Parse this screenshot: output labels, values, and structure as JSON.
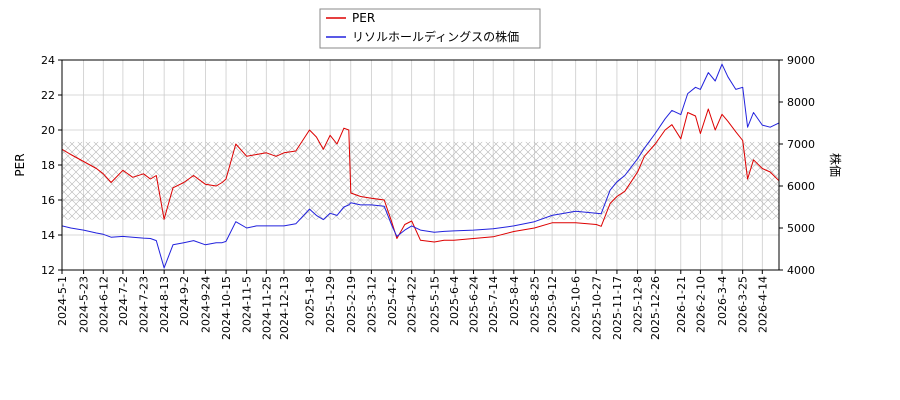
{
  "chart_data": {
    "type": "line",
    "title": "",
    "legend": {
      "placement": "top-center",
      "entries": [
        "PER",
        "リソルホールディングスの株価"
      ]
    },
    "y_left": {
      "label": "PER",
      "range": [
        12,
        24
      ],
      "ticks": [
        "12",
        "14",
        "16",
        "18",
        "20",
        "22",
        "24"
      ]
    },
    "y_right": {
      "label": "株価",
      "range": [
        4000,
        9000
      ],
      "ticks": [
        "4000",
        "5000",
        "6000",
        "7000",
        "8000",
        "9000"
      ]
    },
    "x_axis": {
      "start": "2024-5-1",
      "end": "2026-5-1",
      "ticks": [
        "2024-5-1",
        "2024-5-23",
        "2024-6-12",
        "2024-7-2",
        "2024-7-23",
        "2024-8-13",
        "2024-9-2",
        "2024-9-24",
        "2024-10-15",
        "2024-11-5",
        "2024-11-25",
        "2024-12-13",
        "2025-1-8",
        "2025-1-29",
        "2025-2-19",
        "2025-3-12",
        "2025-4-2",
        "2025-4-22",
        "2025-5-15",
        "2025-6-4",
        "2025-6-24",
        "2025-7-14",
        "2025-8-4",
        "2025-8-25",
        "2025-9-12",
        "2025-10-6",
        "2025-10-27",
        "2025-11-17",
        "2025-12-8",
        "2025-12-26",
        "2026-1-21",
        "2026-2-10",
        "2026-3-4",
        "2026-3-25",
        "2026-4-14"
      ]
    },
    "grid": true,
    "band": {
      "axis": "right",
      "range": [
        5200,
        7050
      ],
      "pattern": "crosshatch"
    },
    "series": [
      {
        "name": "PER",
        "axis": "left",
        "color": "#dd0000",
        "x": [
          "2024-5-1",
          "2024-5-10",
          "2024-5-23",
          "2024-6-5",
          "2024-6-12",
          "2024-6-20",
          "2024-7-2",
          "2024-7-12",
          "2024-7-23",
          "2024-7-30",
          "2024-8-5",
          "2024-8-13",
          "2024-8-22",
          "2024-9-2",
          "2024-9-12",
          "2024-9-24",
          "2024-10-5",
          "2024-10-11",
          "2024-10-15",
          "2024-10-25",
          "2024-11-5",
          "2024-11-15",
          "2024-11-25",
          "2024-12-5",
          "2024-12-13",
          "2024-12-25",
          "2025-1-8",
          "2025-1-15",
          "2025-1-22",
          "2025-1-29",
          "2025-2-5",
          "2025-2-12",
          "2025-2-17",
          "2025-2-19",
          "2025-3-1",
          "2025-3-12",
          "2025-3-25",
          "2025-4-2",
          "2025-4-7",
          "2025-4-15",
          "2025-4-22",
          "2025-5-1",
          "2025-5-15",
          "2025-5-25",
          "2025-6-4",
          "2025-6-24",
          "2025-7-14",
          "2025-8-4",
          "2025-8-25",
          "2025-9-12",
          "2025-10-6",
          "2025-10-27",
          "2025-11-1",
          "2025-11-10",
          "2025-11-17",
          "2025-11-25",
          "2025-12-8",
          "2025-12-15",
          "2025-12-26",
          "2026-1-5",
          "2026-1-12",
          "2026-1-21",
          "2026-1-28",
          "2026-2-5",
          "2026-2-10",
          "2026-2-18",
          "2026-2-25",
          "2026-3-4",
          "2026-3-10",
          "2026-3-18",
          "2026-3-25",
          "2026-3-30",
          "2026-4-5",
          "2026-4-14",
          "2026-4-22",
          "2026-5-1"
        ],
        "y": [
          18.9,
          18.6,
          18.2,
          17.8,
          17.5,
          17.0,
          17.7,
          17.3,
          17.5,
          17.2,
          17.4,
          14.9,
          16.7,
          17.0,
          17.4,
          16.9,
          16.8,
          17.0,
          17.2,
          19.2,
          18.5,
          18.6,
          18.7,
          18.5,
          18.7,
          18.8,
          20.0,
          19.6,
          18.9,
          19.7,
          19.2,
          20.1,
          20.0,
          16.4,
          16.2,
          16.1,
          16.0,
          14.7,
          13.8,
          14.6,
          14.8,
          13.7,
          13.6,
          13.7,
          13.7,
          13.8,
          13.9,
          14.2,
          14.4,
          14.7,
          14.7,
          14.6,
          14.5,
          15.8,
          16.2,
          16.5,
          17.6,
          18.5,
          19.2,
          20.0,
          20.3,
          19.5,
          21.0,
          20.8,
          19.8,
          21.2,
          20.0,
          20.9,
          20.5,
          19.9,
          19.4,
          17.2,
          18.3,
          17.8,
          17.6,
          17.1
        ]
      },
      {
        "name": "リソルホールディングスの株価",
        "axis": "right",
        "color": "#2222dd",
        "x": [
          "2024-5-1",
          "2024-5-10",
          "2024-5-23",
          "2024-6-5",
          "2024-6-12",
          "2024-6-20",
          "2024-7-2",
          "2024-7-12",
          "2024-7-23",
          "2024-7-30",
          "2024-8-5",
          "2024-8-13",
          "2024-8-22",
          "2024-9-2",
          "2024-9-12",
          "2024-9-24",
          "2024-10-5",
          "2024-10-11",
          "2024-10-15",
          "2024-10-25",
          "2024-11-5",
          "2024-11-15",
          "2024-11-25",
          "2024-12-5",
          "2024-12-13",
          "2024-12-25",
          "2025-1-8",
          "2025-1-15",
          "2025-1-22",
          "2025-1-29",
          "2025-2-5",
          "2025-2-12",
          "2025-2-17",
          "2025-2-19",
          "2025-3-1",
          "2025-3-12",
          "2025-3-25",
          "2025-4-2",
          "2025-4-7",
          "2025-4-15",
          "2025-4-22",
          "2025-5-1",
          "2025-5-15",
          "2025-5-25",
          "2025-6-4",
          "2025-6-24",
          "2025-7-14",
          "2025-8-4",
          "2025-8-25",
          "2025-9-12",
          "2025-10-6",
          "2025-10-27",
          "2025-11-1",
          "2025-11-10",
          "2025-11-17",
          "2025-11-25",
          "2025-12-8",
          "2025-12-15",
          "2025-12-26",
          "2026-1-5",
          "2026-1-12",
          "2026-1-21",
          "2026-1-28",
          "2026-2-5",
          "2026-2-10",
          "2026-2-18",
          "2026-2-25",
          "2026-3-4",
          "2026-3-10",
          "2026-3-18",
          "2026-3-25",
          "2026-3-30",
          "2026-4-5",
          "2026-4-14",
          "2026-4-22",
          "2026-5-1"
        ],
        "y": [
          5050,
          5000,
          4950,
          4880,
          4850,
          4780,
          4800,
          4780,
          4760,
          4750,
          4700,
          4050,
          4600,
          4650,
          4700,
          4600,
          4650,
          4650,
          4680,
          5150,
          5000,
          5050,
          5050,
          5050,
          5050,
          5100,
          5450,
          5300,
          5200,
          5350,
          5300,
          5500,
          5550,
          5600,
          5550,
          5550,
          5520,
          5050,
          4800,
          4950,
          5050,
          4950,
          4900,
          4920,
          4930,
          4950,
          4980,
          5050,
          5150,
          5300,
          5400,
          5350,
          5340,
          5900,
          6100,
          6250,
          6650,
          6900,
          7250,
          7600,
          7800,
          7700,
          8200,
          8350,
          8300,
          8700,
          8500,
          8900,
          8600,
          8300,
          8350,
          7400,
          7750,
          7450,
          7400,
          7500
        ]
      }
    ]
  }
}
